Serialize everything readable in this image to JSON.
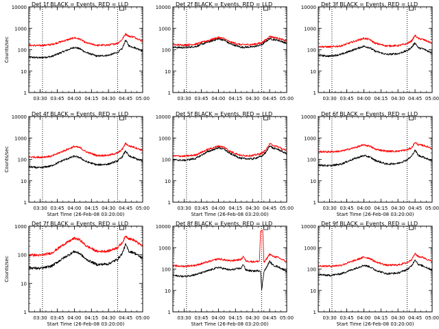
{
  "figure": {
    "background": "#ffffff",
    "colors": {
      "events": "#000000",
      "lld": "#ff0000",
      "axis": "#000000",
      "guide": "#000000"
    }
  },
  "chart_data": [
    {
      "type": "line",
      "title": "Det 1f BLACK = Events, RED = LLD",
      "xlabel": "",
      "ylabel": "Counts/sec",
      "ylog": true,
      "ylim": [
        1,
        10000
      ],
      "yticks": [
        "1",
        "10",
        "100",
        "1000",
        "10000"
      ],
      "xticks": [
        "03:30",
        "03:45",
        "04:00",
        "04:15",
        "04:30",
        "04:45",
        "05:00"
      ],
      "xlim": [
        "03:20",
        "05:00"
      ],
      "vlines": [
        "03:32",
        "04:38"
      ],
      "grid": false,
      "series": [
        {
          "color": "#000000",
          "x": [
            "03:20",
            "03:30",
            "03:40",
            "03:50",
            "04:00",
            "04:05",
            "04:10",
            "04:20",
            "04:30",
            "04:38",
            "04:42",
            "04:45",
            "04:48",
            "04:52",
            "05:00"
          ],
          "y": [
            45,
            42,
            48,
            80,
            130,
            110,
            75,
            50,
            55,
            75,
            110,
            280,
            150,
            130,
            90
          ]
        },
        {
          "color": "#ff0000",
          "x": [
            "03:20",
            "03:30",
            "03:40",
            "03:50",
            "04:00",
            "04:05",
            "04:10",
            "04:20",
            "04:30",
            "04:38",
            "04:42",
            "04:45",
            "04:48",
            "04:52",
            "05:00"
          ],
          "y": [
            160,
            155,
            175,
            250,
            360,
            310,
            210,
            160,
            165,
            200,
            300,
            550,
            420,
            400,
            250
          ]
        }
      ]
    },
    {
      "type": "line",
      "title": "Det 2f BLACK = Events, RED = LLD",
      "xlabel": "",
      "ylabel": "",
      "ylog": true,
      "ylim": [
        1,
        10000
      ],
      "yticks": [
        "1",
        "10",
        "100",
        "1000",
        "10000"
      ],
      "xticks": [
        "03:30",
        "03:45",
        "04:00",
        "04:15",
        "04:30",
        "04:45",
        "05:00"
      ],
      "xlim": [
        "03:20",
        "05:00"
      ],
      "vlines": [
        "03:32",
        "04:38"
      ],
      "grid": false,
      "series": [
        {
          "color": "#000000",
          "x": [
            "03:20",
            "03:30",
            "03:40",
            "03:50",
            "04:00",
            "04:05",
            "04:10",
            "04:20",
            "04:30",
            "04:38",
            "04:42",
            "04:45",
            "04:48",
            "04:52",
            "05:00"
          ],
          "y": [
            130,
            125,
            140,
            220,
            320,
            280,
            190,
            130,
            135,
            170,
            250,
            330,
            300,
            280,
            200
          ]
        },
        {
          "color": "#ff0000",
          "x": [
            "03:20",
            "03:30",
            "03:40",
            "03:50",
            "04:00",
            "04:05",
            "04:10",
            "04:20",
            "04:30",
            "04:38",
            "04:42",
            "04:45",
            "04:48",
            "04:52",
            "05:00"
          ],
          "y": [
            170,
            165,
            180,
            260,
            370,
            330,
            230,
            170,
            175,
            210,
            300,
            420,
            380,
            350,
            250
          ]
        }
      ]
    },
    {
      "type": "line",
      "title": "Det 3f BLACK = Events, RED = LLD",
      "xlabel": "",
      "ylabel": "",
      "ylog": true,
      "ylim": [
        1,
        10000
      ],
      "yticks": [
        "1",
        "10",
        "100",
        "1000",
        "10000"
      ],
      "xticks": [
        "03:30",
        "03:45",
        "04:00",
        "04:15",
        "04:30",
        "04:45",
        "05:00"
      ],
      "xlim": [
        "03:20",
        "05:00"
      ],
      "vlines": [
        "03:32",
        "04:38"
      ],
      "grid": false,
      "series": [
        {
          "color": "#000000",
          "x": [
            "03:20",
            "03:30",
            "03:40",
            "03:50",
            "04:00",
            "04:05",
            "04:10",
            "04:20",
            "04:30",
            "04:38",
            "04:42",
            "04:45",
            "04:48",
            "04:52",
            "05:00"
          ],
          "y": [
            55,
            50,
            60,
            95,
            145,
            125,
            85,
            60,
            65,
            90,
            130,
            210,
            120,
            110,
            70
          ]
        },
        {
          "color": "#ff0000",
          "x": [
            "03:20",
            "03:30",
            "03:40",
            "03:50",
            "04:00",
            "04:05",
            "04:10",
            "04:20",
            "04:30",
            "04:38",
            "04:42",
            "04:45",
            "04:48",
            "04:52",
            "05:00"
          ],
          "y": [
            140,
            135,
            150,
            230,
            340,
            300,
            200,
            150,
            155,
            190,
            260,
            460,
            330,
            300,
            200
          ]
        }
      ]
    },
    {
      "type": "line",
      "title": "Det 4f BLACK = Events, RED = LLD",
      "xlabel": "Start Time (26-Feb-08 03:20:00)",
      "ylabel": "Counts/sec",
      "ylog": true,
      "ylim": [
        1,
        10000
      ],
      "yticks": [
        "1",
        "10",
        "100",
        "1000",
        "10000"
      ],
      "xticks": [
        "03:30",
        "03:45",
        "04:00",
        "04:15",
        "04:30",
        "04:45",
        "05:00"
      ],
      "xlim": [
        "03:20",
        "05:00"
      ],
      "vlines": [
        "03:32",
        "04:38"
      ],
      "grid": false,
      "series": [
        {
          "color": "#000000",
          "x": [
            "03:20",
            "03:30",
            "03:40",
            "03:50",
            "04:00",
            "04:05",
            "04:10",
            "04:20",
            "04:30",
            "04:38",
            "04:42",
            "04:45",
            "04:48",
            "04:52",
            "05:00"
          ],
          "y": [
            45,
            40,
            50,
            90,
            140,
            120,
            80,
            55,
            60,
            85,
            130,
            250,
            140,
            120,
            80
          ]
        },
        {
          "color": "#ff0000",
          "x": [
            "03:20",
            "03:30",
            "03:40",
            "03:50",
            "04:00",
            "04:05",
            "04:10",
            "04:20",
            "04:30",
            "04:38",
            "04:42",
            "04:45",
            "04:48",
            "04:52",
            "05:00"
          ],
          "y": [
            130,
            125,
            140,
            240,
            400,
            350,
            230,
            150,
            155,
            200,
            290,
            560,
            420,
            380,
            260
          ]
        }
      ]
    },
    {
      "type": "line",
      "title": "Det 5f BLACK = Events, RED = LLD",
      "xlabel": "Start Time (26-Feb-08 03:20:00)",
      "ylabel": "",
      "ylog": true,
      "ylim": [
        1,
        10000
      ],
      "yticks": [
        "1",
        "10",
        "100",
        "1000",
        "10000"
      ],
      "xticks": [
        "03:30",
        "03:45",
        "04:00",
        "04:15",
        "04:30",
        "04:45",
        "05:00"
      ],
      "xlim": [
        "03:20",
        "05:00"
      ],
      "vlines": [
        "03:32",
        "04:38"
      ],
      "grid": false,
      "series": [
        {
          "color": "#000000",
          "x": [
            "03:20",
            "03:30",
            "03:40",
            "03:50",
            "04:00",
            "04:05",
            "04:10",
            "04:20",
            "04:30",
            "04:38",
            "04:42",
            "04:45",
            "04:48",
            "04:52",
            "05:00"
          ],
          "y": [
            95,
            90,
            110,
            220,
            350,
            300,
            190,
            110,
            105,
            140,
            220,
            440,
            330,
            300,
            180
          ]
        },
        {
          "color": "#ff0000",
          "x": [
            "03:20",
            "03:30",
            "03:40",
            "03:50",
            "04:00",
            "04:05",
            "04:10",
            "04:20",
            "04:30",
            "04:38",
            "04:42",
            "04:45",
            "04:48",
            "04:52",
            "05:00"
          ],
          "y": [
            145,
            140,
            160,
            280,
            420,
            370,
            240,
            150,
            150,
            190,
            280,
            570,
            430,
            400,
            240
          ]
        }
      ]
    },
    {
      "type": "line",
      "title": "Det 6f BLACK = Events, RED = LLD",
      "xlabel": "Start Time (26-Feb-08 03:20:00)",
      "ylabel": "",
      "ylog": true,
      "ylim": [
        1,
        10000
      ],
      "yticks": [
        "1",
        "10",
        "100",
        "1000",
        "10000"
      ],
      "xticks": [
        "03:30",
        "03:45",
        "04:00",
        "04:15",
        "04:30",
        "04:45",
        "05:00"
      ],
      "xlim": [
        "03:20",
        "05:00"
      ],
      "vlines": [
        "03:32",
        "04:38"
      ],
      "grid": false,
      "series": [
        {
          "color": "#000000",
          "x": [
            "03:20",
            "03:30",
            "03:40",
            "03:50",
            "04:00",
            "04:05",
            "04:10",
            "04:20",
            "04:30",
            "04:38",
            "04:42",
            "04:45",
            "04:48",
            "04:52",
            "05:00"
          ],
          "y": [
            55,
            50,
            60,
            100,
            150,
            130,
            90,
            60,
            65,
            95,
            140,
            270,
            150,
            130,
            85
          ]
        },
        {
          "color": "#ff0000",
          "x": [
            "03:20",
            "03:30",
            "03:40",
            "03:50",
            "04:00",
            "04:05",
            "04:10",
            "04:20",
            "04:30",
            "04:38",
            "04:42",
            "04:45",
            "04:48",
            "04:52",
            "05:00"
          ],
          "y": [
            230,
            225,
            240,
            330,
            470,
            420,
            300,
            240,
            240,
            280,
            350,
            620,
            480,
            450,
            330
          ]
        }
      ]
    },
    {
      "type": "line",
      "title": "Det 7f BLACK = Events, RED = LLD",
      "xlabel": "Start Time (26-Feb-08 03:20:00)",
      "ylabel": "Counts/sec",
      "ylog": true,
      "ylim": [
        1,
        1000
      ],
      "yticks": [
        "1",
        "10",
        "100",
        "1000"
      ],
      "xticks": [
        "03:30",
        "03:45",
        "04:00",
        "04:15",
        "04:30",
        "04:45",
        "05:00"
      ],
      "xlim": [
        "03:20",
        "05:00"
      ],
      "vlines": [
        "03:32",
        "04:38"
      ],
      "grid": false,
      "series": [
        {
          "color": "#000000",
          "x": [
            "03:20",
            "03:30",
            "03:40",
            "03:50",
            "04:00",
            "04:05",
            "04:10",
            "04:20",
            "04:30",
            "04:38",
            "04:42",
            "04:45",
            "04:48",
            "04:52",
            "05:00"
          ],
          "y": [
            35,
            33,
            40,
            75,
            130,
            110,
            70,
            45,
            48,
            70,
            110,
            230,
            130,
            120,
            75
          ]
        },
        {
          "color": "#ff0000",
          "x": [
            "03:20",
            "03:30",
            "03:40",
            "03:50",
            "04:00",
            "04:05",
            "04:10",
            "04:20",
            "04:30",
            "04:38",
            "04:42",
            "04:45",
            "04:48",
            "04:52",
            "05:00"
          ],
          "y": [
            100,
            95,
            115,
            220,
            380,
            330,
            210,
            130,
            135,
            180,
            260,
            450,
            370,
            330,
            200
          ]
        }
      ]
    },
    {
      "type": "line",
      "title": "Det 8f BLACK = Events, RED = LLD",
      "xlabel": "Start Time (26-Feb-08 03:20:00)",
      "ylabel": "",
      "ylog": true,
      "ylim": [
        1,
        10000
      ],
      "yticks": [
        "1",
        "10",
        "100",
        "1000",
        "10000"
      ],
      "xticks": [
        "03:30",
        "03:45",
        "04:00",
        "04:15",
        "04:30",
        "04:45",
        "05:00"
      ],
      "xlim": [
        "03:20",
        "05:00"
      ],
      "vlines": [
        "03:32",
        "04:38"
      ],
      "grid": false,
      "series": [
        {
          "color": "#000000",
          "x": [
            "03:20",
            "03:30",
            "03:40",
            "03:50",
            "04:00",
            "04:10",
            "04:20",
            "04:22",
            "04:24",
            "04:30",
            "04:37",
            "04:38",
            "04:40",
            "04:42",
            "04:45",
            "04:48",
            "04:52",
            "05:00"
          ],
          "y": [
            50,
            45,
            55,
            80,
            120,
            90,
            110,
            170,
            90,
            80,
            85,
            10,
            80,
            110,
            230,
            150,
            130,
            80
          ]
        },
        {
          "color": "#ff0000",
          "x": [
            "03:20",
            "03:30",
            "03:40",
            "03:50",
            "04:00",
            "04:10",
            "04:20",
            "04:22",
            "04:24",
            "04:30",
            "04:36",
            "04:37",
            "04:38",
            "04:39",
            "04:40",
            "04:42",
            "04:45",
            "04:48",
            "04:52",
            "05:00"
          ],
          "y": [
            140,
            135,
            150,
            210,
            300,
            240,
            280,
            400,
            240,
            220,
            230,
            5500,
            6000,
            6000,
            200,
            280,
            500,
            390,
            350,
            220
          ]
        }
      ]
    },
    {
      "type": "line",
      "title": "Det 9f BLACK = Events, RED = LLD",
      "xlabel": "Start Time (26-Feb-08 03:20:00)",
      "ylabel": "",
      "ylog": true,
      "ylim": [
        1,
        10000
      ],
      "yticks": [
        "1",
        "10",
        "100",
        "1000",
        "10000"
      ],
      "xticks": [
        "03:30",
        "03:45",
        "04:00",
        "04:15",
        "04:30",
        "04:45",
        "05:00"
      ],
      "xlim": [
        "03:20",
        "05:00"
      ],
      "vlines": [
        "03:32",
        "04:38"
      ],
      "grid": false,
      "series": [
        {
          "color": "#000000",
          "x": [
            "03:20",
            "03:30",
            "03:40",
            "03:50",
            "04:00",
            "04:05",
            "04:10",
            "04:20",
            "04:30",
            "04:38",
            "04:42",
            "04:45",
            "04:48",
            "04:52",
            "05:00"
          ],
          "y": [
            55,
            50,
            60,
            95,
            150,
            130,
            90,
            60,
            65,
            95,
            140,
            280,
            160,
            140,
            90
          ]
        },
        {
          "color": "#ff0000",
          "x": [
            "03:20",
            "03:30",
            "03:40",
            "03:50",
            "04:00",
            "04:05",
            "04:10",
            "04:20",
            "04:30",
            "04:38",
            "04:42",
            "04:45",
            "04:48",
            "04:52",
            "05:00"
          ],
          "y": [
            140,
            135,
            150,
            230,
            360,
            320,
            220,
            150,
            155,
            200,
            280,
            520,
            380,
            350,
            220
          ]
        }
      ]
    }
  ]
}
